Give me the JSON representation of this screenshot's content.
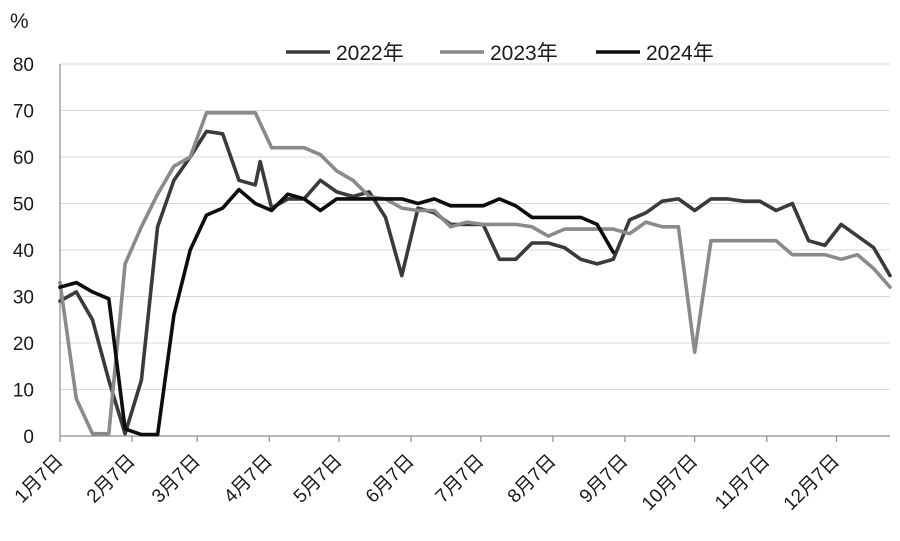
{
  "chart_data": {
    "type": "line",
    "ylabel": "%",
    "ylim": [
      0,
      80
    ],
    "yticks": [
      0,
      10,
      20,
      30,
      40,
      50,
      60,
      70,
      80
    ],
    "x_range": [
      0,
      51
    ],
    "x_ticks": [
      {
        "x": 0,
        "label": "1月7日"
      },
      {
        "x": 4.43,
        "label": "2月7日"
      },
      {
        "x": 8.43,
        "label": "3月7日"
      },
      {
        "x": 12.86,
        "label": "4月7日"
      },
      {
        "x": 17.14,
        "label": "5月7日"
      },
      {
        "x": 21.57,
        "label": "6月7日"
      },
      {
        "x": 25.86,
        "label": "7月7日"
      },
      {
        "x": 30.29,
        "label": "8月7日"
      },
      {
        "x": 34.71,
        "label": "9月7日"
      },
      {
        "x": 39.0,
        "label": "10月7日"
      },
      {
        "x": 43.43,
        "label": "11月7日"
      },
      {
        "x": 47.71,
        "label": "12月7日"
      }
    ],
    "grid": "horizontal",
    "legend": "top-center",
    "series": [
      {
        "name": "2022年",
        "color": "#3a3a3a",
        "points": [
          [
            0,
            29
          ],
          [
            1,
            31
          ],
          [
            2,
            25
          ],
          [
            3,
            12
          ],
          [
            4,
            0.5
          ],
          [
            5,
            12
          ],
          [
            6,
            45
          ],
          [
            7,
            55
          ],
          [
            8,
            60
          ],
          [
            9,
            65.5
          ],
          [
            10,
            65
          ],
          [
            11,
            55
          ],
          [
            12,
            54
          ],
          [
            12.3,
            59
          ],
          [
            13,
            49
          ],
          [
            14,
            51
          ],
          [
            15,
            51
          ],
          [
            16,
            55
          ],
          [
            17,
            52.5
          ],
          [
            18,
            51.5
          ],
          [
            19,
            52.5
          ],
          [
            20,
            47
          ],
          [
            21,
            34.5
          ],
          [
            22,
            49
          ],
          [
            23,
            48
          ],
          [
            24,
            45.5
          ],
          [
            25,
            45.5
          ],
          [
            26,
            45.5
          ],
          [
            27,
            38
          ],
          [
            28,
            38
          ],
          [
            29,
            41.5
          ],
          [
            30,
            41.5
          ],
          [
            31,
            40.5
          ],
          [
            32,
            38
          ],
          [
            33,
            37
          ],
          [
            34,
            38
          ],
          [
            35,
            46.5
          ],
          [
            36,
            48
          ],
          [
            37,
            50.5
          ],
          [
            38,
            51
          ],
          [
            39,
            48.5
          ],
          [
            40,
            51
          ],
          [
            41,
            51
          ],
          [
            42,
            50.5
          ],
          [
            43,
            50.5
          ],
          [
            44,
            48.5
          ],
          [
            45,
            50
          ],
          [
            46,
            42
          ],
          [
            47,
            41
          ],
          [
            48,
            45.5
          ],
          [
            49,
            43
          ],
          [
            50,
            40.5
          ],
          [
            51,
            34.5
          ]
        ]
      },
      {
        "name": "2023年",
        "color": "#8a8a8a",
        "points": [
          [
            0,
            33
          ],
          [
            1,
            8
          ],
          [
            2,
            0.5
          ],
          [
            3,
            0.5
          ],
          [
            4,
            37
          ],
          [
            5,
            45
          ],
          [
            6,
            52
          ],
          [
            7,
            58
          ],
          [
            8,
            60
          ],
          [
            9,
            69.5
          ],
          [
            10,
            69.5
          ],
          [
            11,
            69.5
          ],
          [
            12,
            69.5
          ],
          [
            13,
            62
          ],
          [
            14,
            62
          ],
          [
            15,
            62
          ],
          [
            16,
            60.5
          ],
          [
            17,
            57
          ],
          [
            18,
            55
          ],
          [
            19,
            51.5
          ],
          [
            20,
            51
          ],
          [
            21,
            49
          ],
          [
            22,
            48.5
          ],
          [
            23,
            48.5
          ],
          [
            24,
            45
          ],
          [
            25,
            46
          ],
          [
            26,
            45.5
          ],
          [
            27,
            45.5
          ],
          [
            28,
            45.5
          ],
          [
            29,
            45
          ],
          [
            30,
            43
          ],
          [
            31,
            44.5
          ],
          [
            32,
            44.5
          ],
          [
            33,
            44.5
          ],
          [
            34,
            44.5
          ],
          [
            35,
            43.5
          ],
          [
            36,
            46
          ],
          [
            37,
            45
          ],
          [
            38,
            45
          ],
          [
            39,
            18
          ],
          [
            40,
            42
          ],
          [
            41,
            42
          ],
          [
            42,
            42
          ],
          [
            43,
            42
          ],
          [
            44,
            42
          ],
          [
            45,
            39
          ],
          [
            46,
            39
          ],
          [
            47,
            39
          ],
          [
            48,
            38
          ],
          [
            49,
            39
          ],
          [
            50,
            36
          ],
          [
            51,
            32
          ]
        ]
      },
      {
        "name": "2024年",
        "color": "#0d0d0d",
        "points": [
          [
            0,
            32
          ],
          [
            1,
            33
          ],
          [
            2,
            31
          ],
          [
            3,
            29.5
          ],
          [
            4,
            1.5
          ],
          [
            5,
            0.3
          ],
          [
            6,
            0.3
          ],
          [
            7,
            26
          ],
          [
            8,
            40
          ],
          [
            9,
            47.5
          ],
          [
            10,
            49
          ],
          [
            11,
            53
          ],
          [
            12,
            50
          ],
          [
            13,
            48.5
          ],
          [
            14,
            52
          ],
          [
            15,
            51
          ],
          [
            16,
            48.5
          ],
          [
            17,
            51
          ],
          [
            18,
            51
          ],
          [
            19,
            51
          ],
          [
            20,
            51
          ],
          [
            21,
            51
          ],
          [
            22,
            50
          ],
          [
            23,
            51
          ],
          [
            24,
            49.5
          ],
          [
            25,
            49.5
          ],
          [
            26,
            49.5
          ],
          [
            27,
            51
          ],
          [
            28,
            49.5
          ],
          [
            29,
            47
          ],
          [
            30,
            47
          ],
          [
            31,
            47
          ],
          [
            32,
            47
          ],
          [
            33,
            45.5
          ],
          [
            34,
            39.5
          ]
        ]
      }
    ]
  }
}
